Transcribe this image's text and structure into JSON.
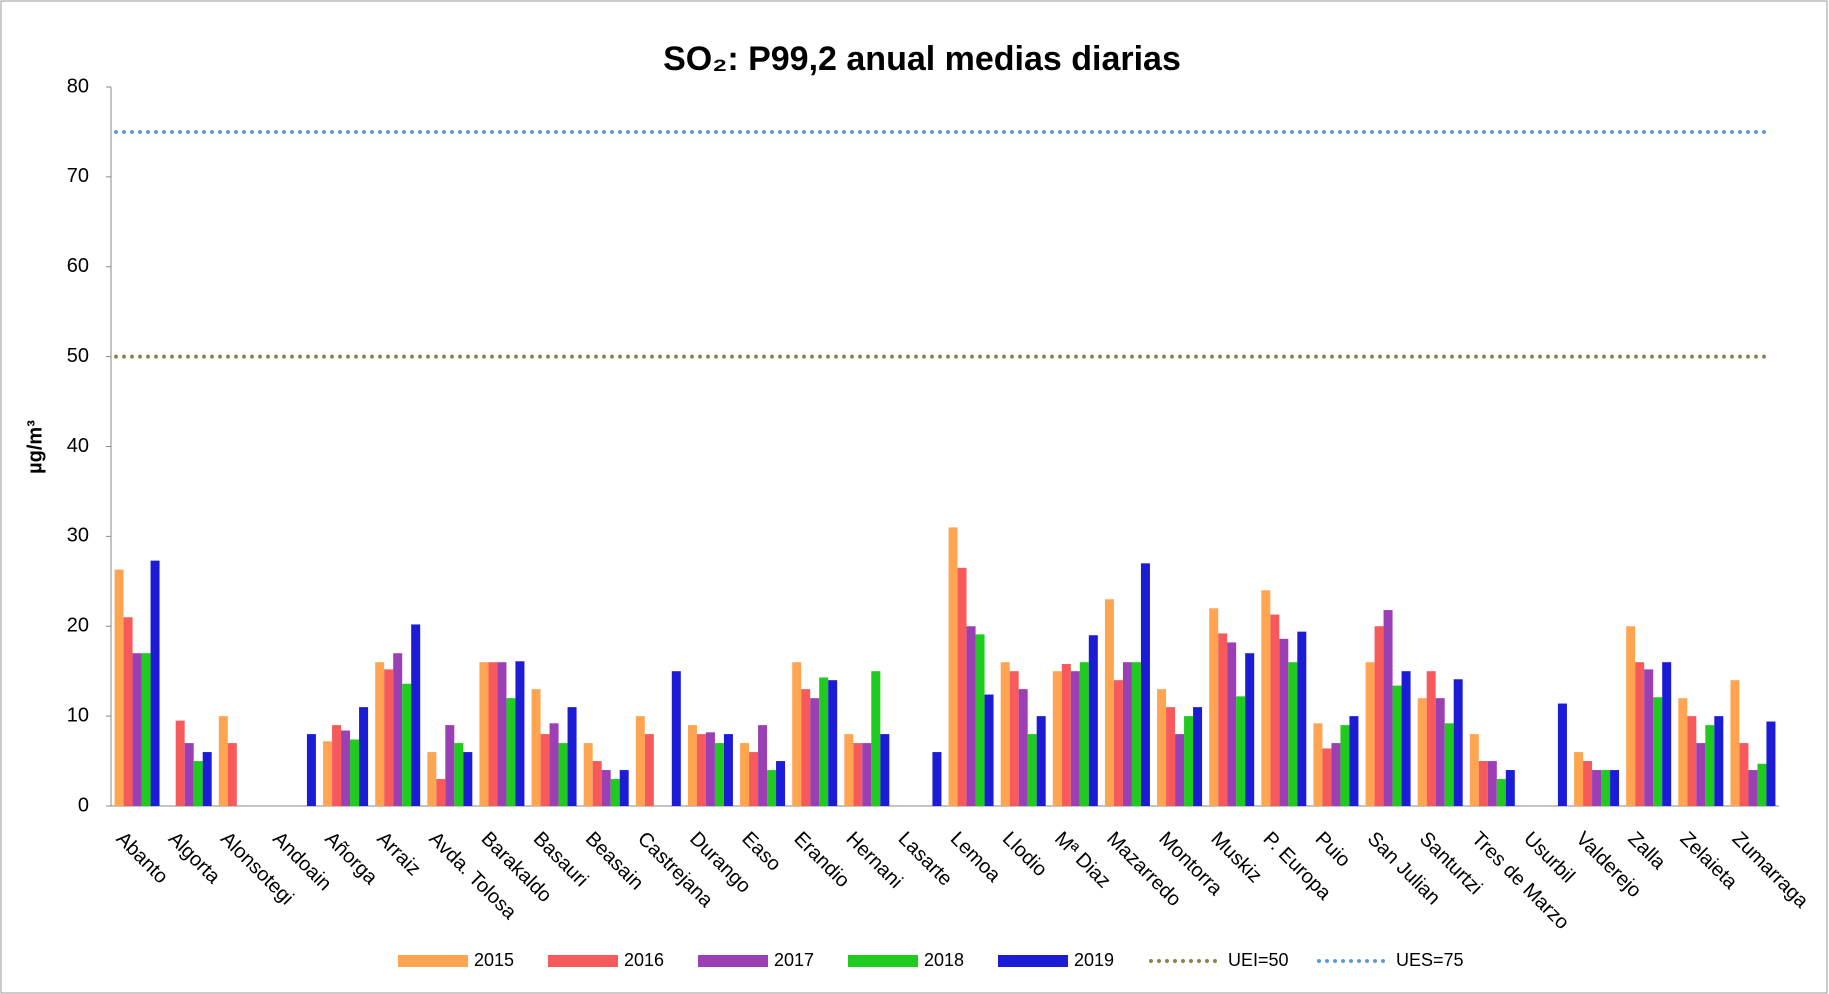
{
  "chart_data": {
    "type": "bar",
    "title": "SO₂: P99,2 anual medias diarias",
    "y_label": "µg/m³",
    "categories": [
      "Abanto",
      "Algorta",
      "Alonsotegi",
      "Andoain",
      "Añorga",
      "Arraiz",
      "Avda. Tolosa",
      "Barakaldo",
      "Basauri",
      "Beasain",
      "Castrejana",
      "Durango",
      "Easo",
      "Erandio",
      "Hernani",
      "Lasarte",
      "Lemoa",
      "Llodio",
      "Mª Diaz",
      "Mazarredo",
      "Montorra",
      "Muskiz",
      "P. Europa",
      "Puio",
      "San Julian",
      "Santurtzi",
      "Tres de Marzo",
      "Usurbil",
      "Valderejo",
      "Zalla",
      "Zelaieta",
      "Zumarraga"
    ],
    "series": [
      {
        "name": "2015",
        "color": "#ffa552",
        "values": [
          26.3,
          null,
          10,
          null,
          7.2,
          16,
          6,
          16,
          13,
          7,
          10,
          9,
          7,
          16,
          8,
          null,
          31,
          16,
          15,
          23,
          13,
          22,
          24,
          9.2,
          16,
          12,
          8,
          null,
          6,
          20,
          12,
          14
        ]
      },
      {
        "name": "2016",
        "color": "#f75a5a",
        "values": [
          21,
          9.5,
          7,
          null,
          9,
          15.2,
          3,
          16,
          8,
          5,
          8,
          8,
          6,
          13,
          7,
          null,
          26.5,
          15,
          15.8,
          14,
          11,
          19.2,
          21.3,
          6.4,
          20,
          15,
          5,
          null,
          5,
          16,
          10,
          7
        ]
      },
      {
        "name": "2017",
        "color": "#9b3fb5",
        "values": [
          17,
          7,
          null,
          null,
          8.4,
          17,
          9,
          16,
          9.2,
          4,
          null,
          8.2,
          9,
          12,
          7,
          null,
          20,
          13,
          15,
          16,
          8,
          18.2,
          18.6,
          7,
          21.8,
          12,
          5,
          null,
          4,
          15.2,
          7,
          4
        ]
      },
      {
        "name": "2018",
        "color": "#1ecb1e",
        "values": [
          17,
          5,
          null,
          null,
          7.4,
          13.6,
          7,
          12,
          7,
          3,
          null,
          7,
          4,
          14.3,
          15,
          null,
          19.1,
          8,
          16,
          16,
          10,
          12.2,
          16,
          9,
          13.4,
          9.2,
          3,
          null,
          4,
          12.1,
          9,
          4.7
        ]
      },
      {
        "name": "2019",
        "color": "#1c1cd6",
        "values": [
          27.3,
          6,
          null,
          8,
          11,
          20.2,
          6,
          16.1,
          11,
          4,
          15,
          8,
          5,
          14,
          8,
          6,
          12.4,
          10,
          19,
          27,
          11,
          17,
          19.4,
          10,
          15,
          14.1,
          4,
          11.4,
          4,
          16,
          10,
          9.4
        ]
      }
    ],
    "reference_lines": [
      {
        "name": "UEI=50",
        "value": 50,
        "color": "#8c8252"
      },
      {
        "name": "UES=75",
        "value": 75,
        "color": "#5b9bd5"
      }
    ],
    "ylim": [
      0,
      80
    ],
    "yticks": [
      0,
      10,
      20,
      30,
      40,
      50,
      60,
      70,
      80
    ],
    "grid": false
  }
}
